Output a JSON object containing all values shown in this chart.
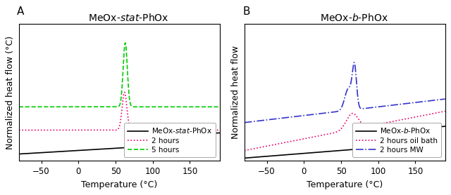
{
  "xlim": [
    -80,
    190
  ],
  "xticks": [
    -50,
    0,
    50,
    100,
    150
  ],
  "xlabel": "Temperature (°C)",
  "ylabel_A": "Normalized heat flow (°C)",
  "ylabel_B": "Normalized heat flow",
  "title_A": "MeOx-$\\it{stat}$-PhOx",
  "title_B": "MeOx-$\\it{b}$-PhOx",
  "label_A": "A",
  "label_B": "B",
  "legend_A": [
    "MeOx-$\\it{stat}$-PhOx",
    "2 hours",
    "5 hours"
  ],
  "legend_B": [
    "MeOx-$\\it{b}$-PhOx",
    "2 hours oil bath",
    "2 hours MW"
  ],
  "colors_A": [
    "black",
    "#e8006a",
    "#00cc00"
  ],
  "colors_B": [
    "black",
    "#e8006a",
    "#3333cc"
  ],
  "linestyles_A": [
    "solid",
    "dotted",
    "dashed"
  ],
  "linestyles_B": [
    "solid",
    "dotted",
    "dashdot"
  ],
  "lw": 1.2
}
